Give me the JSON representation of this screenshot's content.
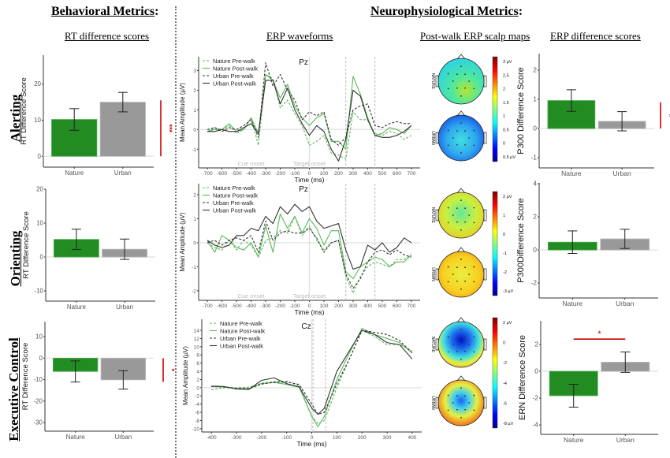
{
  "headers": {
    "behavioral": "Behavioral Metrics",
    "neuro": "Neurophysiological Metrics",
    "colon": ":"
  },
  "columns": {
    "rt": "RT difference scores",
    "erp_wave": "ERP waveforms",
    "scalp": "Post-walk ERP scalp maps",
    "erp_diff": "ERP difference scores"
  },
  "rows": {
    "alerting": "Alerting",
    "orienting": "Orienting",
    "executive": "Executive Control"
  },
  "colors": {
    "nature": "#228B22",
    "urban": "#999999",
    "sig": "#cc0000",
    "nature_line": "#5cb85c",
    "urban_line": "#333333"
  },
  "chart_data": [
    {
      "id": "rt_alerting",
      "type": "bar",
      "categories": [
        "Nature",
        "Urban"
      ],
      "values": [
        10.2,
        15.0
      ],
      "errors": [
        3.0,
        2.7
      ],
      "ylabel": "RT Difference Score",
      "ylim": [
        -3,
        28
      ],
      "yticks": [
        0,
        10,
        20
      ],
      "significance": {
        "label": "***",
        "orientation": "vertical",
        "range": [
          0,
          15.5
        ]
      }
    },
    {
      "id": "rt_orienting",
      "type": "bar",
      "categories": [
        "Nature",
        "Urban"
      ],
      "values": [
        5.2,
        2.3
      ],
      "errors": [
        3.0,
        3.0
      ],
      "ylabel": "RT Difference Score",
      "ylim": [
        -13,
        20
      ],
      "yticks": [
        -10,
        0,
        10,
        20
      ]
    },
    {
      "id": "rt_executive",
      "type": "bar",
      "categories": [
        "Nature",
        "Urban"
      ],
      "values": [
        -6.2,
        -10.1
      ],
      "errors": [
        4.9,
        4.3
      ],
      "ylabel": "RT Difference Score",
      "ylim": [
        -34,
        17
      ],
      "yticks": [
        -30,
        -20,
        -10,
        0,
        10
      ],
      "significance": {
        "label": "*",
        "orientation": "vertical",
        "range": [
          0,
          -11
        ]
      }
    },
    {
      "id": "p300_alerting",
      "type": "bar",
      "categories": [
        "Nature",
        "Urban"
      ],
      "values": [
        0.96,
        0.25
      ],
      "errors": [
        0.37,
        0.33
      ],
      "ylabel": "P300 Difference Score",
      "ylim": [
        -1.35,
        2.57
      ],
      "yticks": [
        -1,
        0,
        1,
        2
      ],
      "significance": {
        "label": "*",
        "orientation": "vertical",
        "range": [
          0,
          0.9
        ]
      }
    },
    {
      "id": "p300_orienting",
      "type": "bar",
      "categories": [
        "Nature",
        "Urban"
      ],
      "values": [
        0.47,
        0.67
      ],
      "errors": [
        0.68,
        0.58
      ],
      "ylabel": "P300Difference Score",
      "ylim": [
        -2.9,
        4.05
      ],
      "yticks": [
        -2,
        0,
        2,
        4
      ]
    },
    {
      "id": "ern_executive",
      "type": "bar",
      "categories": [
        "Nature",
        "Urban"
      ],
      "values": [
        -1.82,
        0.68
      ],
      "errors": [
        0.85,
        0.76
      ],
      "ylabel": "ERN Difference Score",
      "ylim": [
        -4.7,
        3.76
      ],
      "yticks": [
        -4,
        -2,
        0,
        2
      ],
      "significance": {
        "label": "*",
        "orientation": "horizontal",
        "level": 2.4
      }
    },
    {
      "id": "wave_alerting",
      "type": "line",
      "title": "Pz",
      "xlabel": "Time (ms)",
      "ylabel": "Mean Amplitude (µV)",
      "xlim": [
        -760,
        760
      ],
      "ylim": [
        -1.95,
        3.7
      ],
      "xticks": [
        -700,
        -600,
        -500,
        -400,
        -300,
        -200,
        -100,
        0,
        100,
        200,
        300,
        400,
        500,
        600,
        700
      ],
      "yticks": [
        -1,
        0,
        1,
        2,
        3
      ],
      "vlines_solid": [
        0
      ],
      "vlines_dashed": [
        250,
        450
      ],
      "annotations": [
        {
          "text": "Cue onset",
          "x": -400
        },
        {
          "text": "Target onset",
          "x": 0
        }
      ],
      "x": [
        -700,
        -650,
        -600,
        -550,
        -500,
        -450,
        -400,
        -350,
        -300,
        -250,
        -200,
        -150,
        -100,
        -50,
        0,
        50,
        100,
        150,
        200,
        250,
        300,
        350,
        400,
        450,
        500,
        550,
        600,
        650,
        700
      ],
      "series": [
        {
          "name": "Nature Pre-walk",
          "style": "dashed",
          "group": "nature",
          "values": [
            -0.1,
            0.1,
            0.0,
            0.2,
            -0.2,
            0.0,
            0.6,
            -0.8,
            2.8,
            2.6,
            1.1,
            1.5,
            0.8,
            0.2,
            -0.8,
            -0.6,
            -0.3,
            -1.2,
            -1.3,
            -1.5,
            0.9,
            0.5,
            0.5,
            -0.2,
            -0.3,
            -0.1,
            -0.2,
            -0.5,
            -0.3
          ]
        },
        {
          "name": "Nature Post-walk",
          "style": "solid",
          "group": "nature",
          "values": [
            -0.1,
            0.0,
            0.0,
            0.3,
            -0.1,
            0.0,
            0.6,
            -0.2,
            2.8,
            2.5,
            1.6,
            2.3,
            1.2,
            0.6,
            0.2,
            0.6,
            0.8,
            -0.6,
            -0.6,
            -1.0,
            2.7,
            1.8,
            0.6,
            -0.3,
            -0.2,
            0.1,
            0.0,
            -0.2,
            0.2
          ]
        },
        {
          "name": "Urban Pre-walk",
          "style": "dashed",
          "group": "urban",
          "values": [
            0.0,
            0.1,
            -0.1,
            0.1,
            0.0,
            0.2,
            0.5,
            -0.4,
            3.4,
            2.2,
            2.8,
            2.0,
            1.5,
            0.5,
            0.9,
            0.7,
            0.9,
            -0.5,
            -0.8,
            -0.4,
            1.0,
            1.2,
            1.3,
            0.2,
            0.1,
            0.3,
            0.4,
            0.3,
            0.3
          ]
        },
        {
          "name": "Urban Post-walk",
          "style": "solid",
          "group": "urban",
          "values": [
            -0.1,
            -0.1,
            0.0,
            -0.1,
            -0.1,
            0.1,
            0.3,
            -0.2,
            2.5,
            2.5,
            1.3,
            2.1,
            1.0,
            0.3,
            -0.3,
            0.2,
            -0.1,
            -1.0,
            -1.6,
            -0.5,
            2.0,
            1.7,
            0.5,
            -0.3,
            -0.4,
            -0.4,
            -0.3,
            -0.1,
            0.2
          ]
        }
      ]
    },
    {
      "id": "wave_orienting",
      "type": "line",
      "title": "Pz",
      "xlabel": "Time (ms)",
      "ylabel": "Mean Amplitude (µV)",
      "xlim": [
        -760,
        760
      ],
      "ylim": [
        -2.4,
        2.46
      ],
      "xticks": [
        -700,
        -600,
        -500,
        -400,
        -300,
        -200,
        -100,
        0,
        100,
        200,
        300,
        400,
        500,
        600,
        700
      ],
      "yticks": [
        -2,
        -1,
        0,
        1,
        2
      ],
      "vlines_solid": [
        0
      ],
      "vlines_dashed": [
        250,
        450
      ],
      "annotations": [
        {
          "text": "Cue onset",
          "x": -400
        },
        {
          "text": "Target onset",
          "x": 0
        }
      ],
      "x": [
        -700,
        -650,
        -600,
        -550,
        -500,
        -450,
        -400,
        -350,
        -300,
        -250,
        -200,
        -150,
        -100,
        -50,
        0,
        50,
        100,
        150,
        200,
        250,
        300,
        350,
        400,
        450,
        500,
        550,
        600,
        650,
        700
      ],
      "series": [
        {
          "name": "Nature Pre-walk",
          "style": "dashed",
          "group": "nature",
          "values": [
            0.0,
            -0.2,
            -0.3,
            0.1,
            -0.3,
            0.1,
            -0.1,
            -0.6,
            0.1,
            0.2,
            0.5,
            0.4,
            1.1,
            0.3,
            0.7,
            0.1,
            -0.3,
            0.0,
            0.1,
            -1.4,
            -2.1,
            -1.4,
            -1.0,
            -0.8,
            -0.9,
            -1.0,
            -0.7,
            -0.7,
            -0.5
          ]
        },
        {
          "name": "Nature Post-walk",
          "style": "solid",
          "group": "nature",
          "values": [
            0.1,
            -0.4,
            0.3,
            0.1,
            -0.2,
            -0.3,
            0.0,
            -0.6,
            0.7,
            -0.4,
            1.2,
            0.6,
            1.1,
            0.4,
            1.0,
            0.6,
            -0.1,
            0.5,
            0.5,
            -1.2,
            -1.5,
            -1.0,
            -0.8,
            -0.6,
            -0.7,
            -1.0,
            -0.8,
            -0.8,
            -0.5
          ]
        },
        {
          "name": "Urban Pre-walk",
          "style": "dashed",
          "group": "urban",
          "values": [
            0.0,
            0.1,
            -0.1,
            0.1,
            0.2,
            0.1,
            0.3,
            -0.4,
            0.9,
            0.1,
            0.4,
            0.5,
            0.4,
            0.4,
            0.6,
            0.2,
            -0.4,
            0.0,
            0.1,
            -1.3,
            -1.9,
            -1.5,
            -0.8,
            -0.4,
            -0.3,
            -0.5,
            -0.3,
            -0.5,
            -0.6
          ]
        },
        {
          "name": "Urban Post-walk",
          "style": "solid",
          "group": "urban",
          "values": [
            0.1,
            -0.1,
            -0.2,
            -0.1,
            0.3,
            0.3,
            0.6,
            0.5,
            1.1,
            0.8,
            1.5,
            1.2,
            1.6,
            1.3,
            1.5,
            0.9,
            0.6,
            0.7,
            0.8,
            -0.3,
            -1.1,
            -1.0,
            -0.1,
            -0.3,
            0.0,
            -0.4,
            -0.2,
            0.2,
            0.0
          ]
        }
      ]
    },
    {
      "id": "wave_executive",
      "type": "line",
      "title": "Cz",
      "xlabel": "Time (ms)",
      "ylabel": "Mean Amplitude (µV)",
      "xlim": [
        -438,
        438
      ],
      "ylim": [
        -10.8,
        16.7
      ],
      "xticks": [
        -400,
        -300,
        -200,
        -100,
        0,
        100,
        200,
        300,
        400
      ],
      "yticks": [
        -10,
        -8,
        -6,
        -4,
        -2,
        0,
        2,
        4,
        6,
        8,
        10,
        12,
        14
      ],
      "vlines_solid": [
        0
      ],
      "vlines_dashed": [
        5,
        55
      ],
      "annotations": [],
      "x": [
        -400,
        -350,
        -300,
        -250,
        -200,
        -150,
        -100,
        -50,
        0,
        25,
        50,
        100,
        150,
        200,
        250,
        300,
        350,
        400
      ],
      "series": [
        {
          "name": "Nature Pre-walk",
          "style": "dashed",
          "group": "nature",
          "values": [
            -0.5,
            0.0,
            0.0,
            0.1,
            1.1,
            1.5,
            1.6,
            0.5,
            -7.0,
            -8.8,
            -8.0,
            0.0,
            7.0,
            14.0,
            12.5,
            10.5,
            10.5,
            9.0
          ]
        },
        {
          "name": "Nature Post-walk",
          "style": "solid",
          "group": "nature",
          "values": [
            0.3,
            0.2,
            -0.2,
            -0.2,
            1.0,
            1.3,
            0.8,
            0.1,
            -7.0,
            -9.5,
            -7.0,
            2.0,
            8.5,
            14.5,
            13.0,
            12.0,
            11.0,
            8.5
          ]
        },
        {
          "name": "Urban Pre-walk",
          "style": "dashed",
          "group": "urban",
          "values": [
            0.3,
            0.2,
            -0.2,
            -0.3,
            0.9,
            1.3,
            1.4,
            0.8,
            -4.0,
            -6.5,
            -6.0,
            1.0,
            7.0,
            14.0,
            13.5,
            13.0,
            11.5,
            8.5
          ]
        },
        {
          "name": "Urban Post-walk",
          "style": "solid",
          "group": "urban",
          "values": [
            0.4,
            0.3,
            -0.3,
            -0.4,
            1.8,
            2.4,
            1.0,
            0.2,
            -5.0,
            -6.5,
            -5.0,
            4.0,
            9.0,
            14.0,
            13.0,
            11.0,
            10.5,
            7.0
          ]
        }
      ]
    }
  ],
  "scalp_maps": [
    {
      "row": "alerting",
      "labels": [
        "NATURE",
        "URBAN"
      ],
      "colorbar_ticks": [
        "3 µV",
        "2.5",
        "2",
        "1.5",
        "1",
        "0.5",
        "0",
        "0.5 µV"
      ]
    },
    {
      "row": "orienting",
      "labels": [
        "NATURE",
        "URBAN"
      ],
      "colorbar_ticks": [
        "2 µV",
        "1",
        "0",
        "-1",
        "-2",
        "-3 µV"
      ]
    },
    {
      "row": "executive",
      "labels": [
        "NATURE",
        "URBAN"
      ],
      "colorbar_ticks": [
        "2 µV",
        "0",
        "-2",
        "-4",
        "-6",
        "-8 µV"
      ]
    }
  ]
}
